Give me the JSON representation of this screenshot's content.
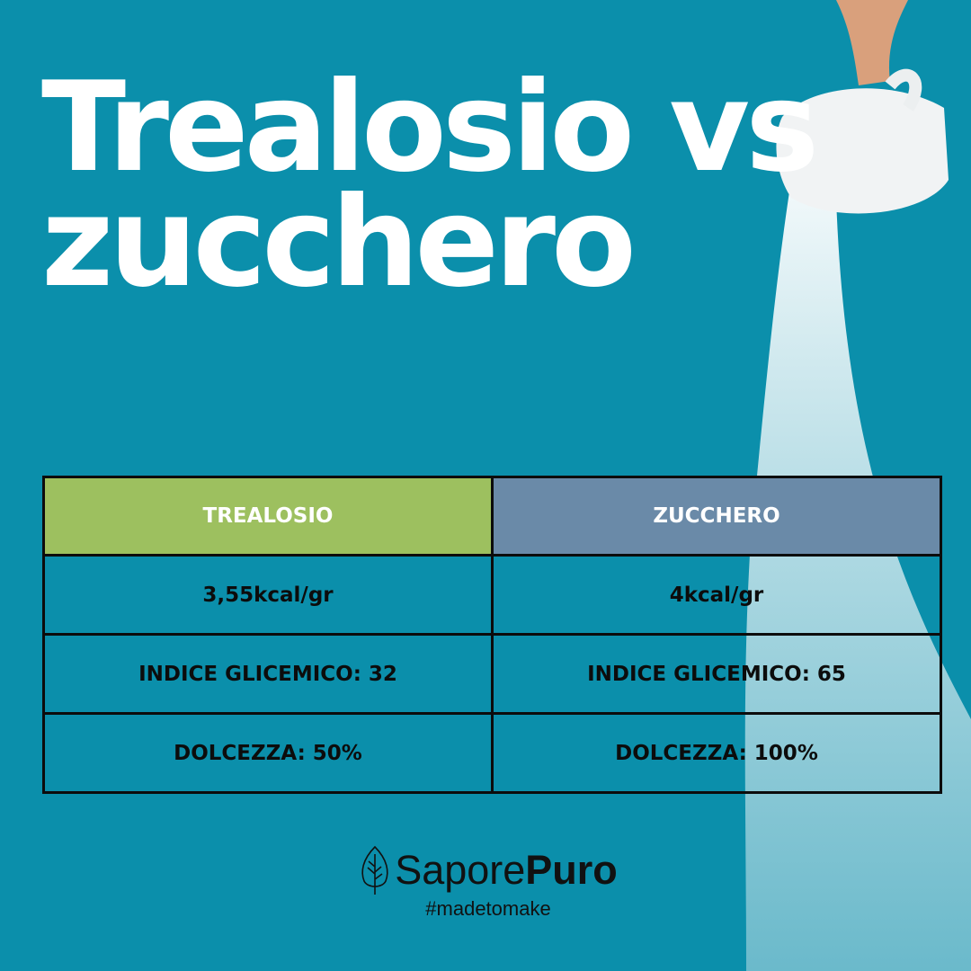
{
  "title": {
    "line1": "Trealosio vs",
    "line2": "zucchero"
  },
  "colors": {
    "background": "#0b8fab",
    "trealosio_header": "#9dc05f",
    "zucchero_header": "#6a8aa8"
  },
  "table": {
    "headers": [
      "TREALOSIO",
      "ZUCCHERO"
    ],
    "rows": [
      [
        "3,55kcal/gr",
        "4kcal/gr"
      ],
      [
        "INDICE GLICEMICO: 32",
        "INDICE GLICEMICO: 65"
      ],
      [
        "DOLCEZZA: 50%",
        "DOLCEZZA: 100%"
      ]
    ]
  },
  "logo": {
    "brand_light": "Sapore",
    "brand_bold": "Puro",
    "tagline": "#madetomake",
    "icon": "leaf-icon"
  }
}
